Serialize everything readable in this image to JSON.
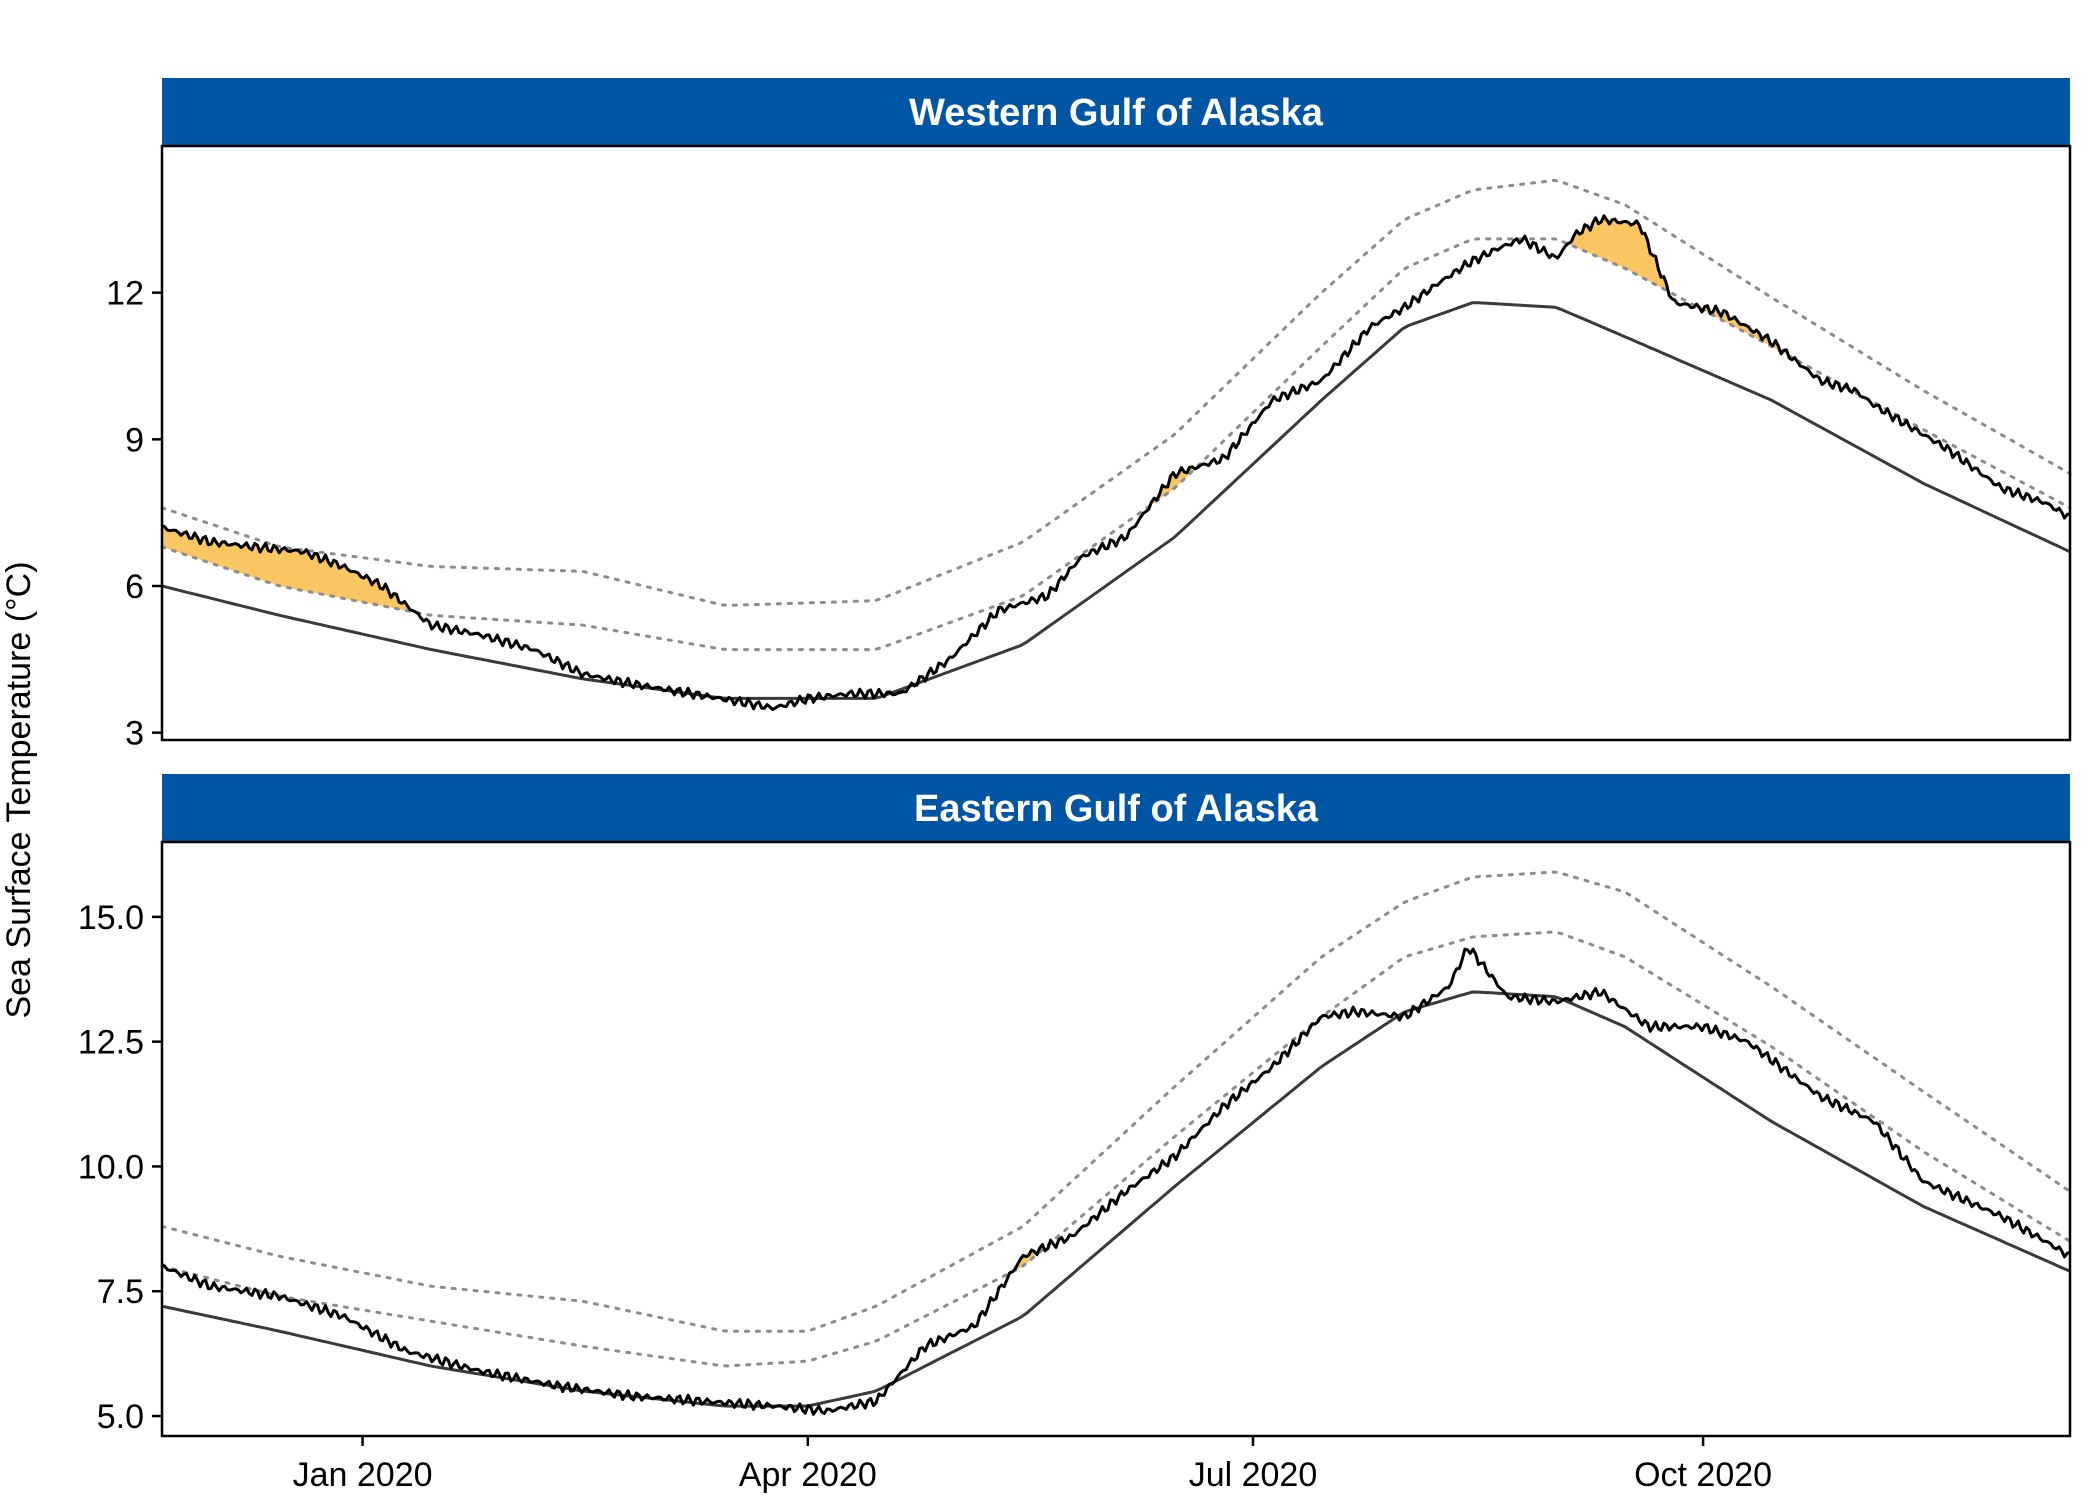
{
  "colors": {
    "strip": "#0055A4",
    "strip_text": "#FFFFFF",
    "observed": "#000000",
    "climatology": "#3a3a3a",
    "threshold": "#8c8c8c",
    "heatwave_fill": "#F9C662"
  },
  "ylabel": "Sea Surface Temperature (°C)",
  "x_ticks": [
    "Jan 2020",
    "Apr 2020",
    "Jul 2020",
    "Oct 2020"
  ],
  "chart_data": [
    {
      "type": "line",
      "title": "Western Gulf of Alaska",
      "xlabel": "",
      "ylabel": "Sea Surface Temperature (°C)",
      "xlim": [
        "2019-11-21",
        "2020-12-15"
      ],
      "ylim": [
        2.85,
        15.0
      ],
      "y_ticks": [
        3,
        6,
        9,
        12
      ],
      "grid": false,
      "series": [
        {
          "role": "observed",
          "x": [
            "2019-11-21",
            "2019-12-01",
            "2019-12-10",
            "2019-12-20",
            "2019-12-28",
            "2020-01-05",
            "2020-01-15",
            "2020-01-25",
            "2020-02-05",
            "2020-02-15",
            "2020-02-25",
            "2020-03-08",
            "2020-03-20",
            "2020-03-25",
            "2020-04-01",
            "2020-04-10",
            "2020-04-20",
            "2020-04-30",
            "2020-05-10",
            "2020-05-20",
            "2020-05-27",
            "2020-06-05",
            "2020-06-15",
            "2020-06-25",
            "2020-07-05",
            "2020-07-15",
            "2020-07-25",
            "2020-08-01",
            "2020-08-08",
            "2020-08-14",
            "2020-08-20",
            "2020-08-25",
            "2020-09-01",
            "2020-09-05",
            "2020-09-10",
            "2020-09-18",
            "2020-09-25",
            "2020-10-05",
            "2020-10-15",
            "2020-10-25",
            "2020-11-01",
            "2020-11-05",
            "2020-11-10",
            "2020-11-20",
            "2020-12-01",
            "2020-12-10",
            "2020-12-15"
          ],
          "y": [
            7.2,
            6.9,
            6.8,
            6.7,
            6.4,
            6.0,
            5.2,
            5.0,
            4.7,
            4.2,
            4.0,
            3.8,
            3.6,
            3.5,
            3.7,
            3.8,
            3.8,
            4.5,
            5.5,
            5.8,
            6.6,
            7.0,
            8.3,
            8.6,
            9.8,
            10.2,
            11.3,
            11.7,
            12.2,
            12.6,
            12.9,
            13.1,
            12.7,
            13.2,
            13.5,
            13.4,
            11.8,
            11.6,
            11.0,
            10.2,
            10.0,
            9.7,
            9.4,
            8.8,
            8.0,
            7.7,
            7.4
          ]
        },
        {
          "role": "climatology",
          "x": [
            "2019-11-21",
            "2019-12-15",
            "2020-01-15",
            "2020-02-15",
            "2020-03-15",
            "2020-04-15",
            "2020-05-15",
            "2020-06-15",
            "2020-07-15",
            "2020-08-01",
            "2020-08-15",
            "2020-09-01",
            "2020-09-15",
            "2020-10-15",
            "2020-11-15",
            "2020-12-15"
          ],
          "y": [
            6.0,
            5.4,
            4.7,
            4.1,
            3.7,
            3.7,
            4.8,
            7.0,
            9.8,
            11.3,
            11.8,
            11.7,
            11.1,
            9.8,
            8.1,
            6.7
          ]
        },
        {
          "role": "threshold",
          "x": [
            "2019-11-21",
            "2019-12-15",
            "2020-01-15",
            "2020-02-15",
            "2020-03-15",
            "2020-04-15",
            "2020-05-15",
            "2020-06-15",
            "2020-07-15",
            "2020-08-01",
            "2020-08-15",
            "2020-09-01",
            "2020-09-15",
            "2020-10-15",
            "2020-11-15",
            "2020-12-15"
          ],
          "y": [
            6.8,
            6.0,
            5.4,
            5.2,
            4.7,
            4.7,
            5.8,
            8.0,
            10.9,
            12.5,
            13.1,
            13.1,
            12.5,
            10.9,
            9.2,
            7.6
          ]
        },
        {
          "role": "threshold-upper",
          "x": [
            "2019-11-21",
            "2019-12-15",
            "2020-01-15",
            "2020-02-15",
            "2020-03-15",
            "2020-04-15",
            "2020-05-15",
            "2020-06-15",
            "2020-07-15",
            "2020-08-01",
            "2020-08-15",
            "2020-09-01",
            "2020-09-15",
            "2020-10-15",
            "2020-11-15",
            "2020-12-15"
          ],
          "y": [
            7.6,
            6.8,
            6.4,
            6.3,
            5.6,
            5.7,
            6.9,
            9.1,
            12.0,
            13.5,
            14.1,
            14.3,
            13.8,
            11.9,
            10.0,
            8.3
          ]
        }
      ]
    },
    {
      "type": "line",
      "title": "Eastern Gulf of Alaska",
      "xlabel": "",
      "ylabel": "Sea Surface Temperature (°C)",
      "xlim": [
        "2019-11-21",
        "2020-12-15"
      ],
      "ylim": [
        4.6,
        16.5
      ],
      "y_ticks": [
        5.0,
        7.5,
        10.0,
        12.5,
        15.0
      ],
      "y_tick_labels": [
        "5.0",
        "7.5",
        "10.0",
        "12.5",
        "15.0"
      ],
      "x_ticks": [
        "Jan 2020",
        "Apr 2020",
        "Jul 2020",
        "Oct 2020"
      ],
      "grid": false,
      "series": [
        {
          "role": "observed",
          "x": [
            "2019-11-21",
            "2019-12-01",
            "2019-12-15",
            "2019-12-28",
            "2020-01-10",
            "2020-01-25",
            "2020-02-10",
            "2020-02-25",
            "2020-03-10",
            "2020-03-25",
            "2020-04-05",
            "2020-04-15",
            "2020-04-25",
            "2020-05-05",
            "2020-05-15",
            "2020-05-25",
            "2020-06-05",
            "2020-06-15",
            "2020-06-25",
            "2020-07-05",
            "2020-07-15",
            "2020-07-22",
            "2020-08-01",
            "2020-08-10",
            "2020-08-14",
            "2020-08-22",
            "2020-09-01",
            "2020-09-10",
            "2020-09-20",
            "2020-10-01",
            "2020-10-10",
            "2020-10-25",
            "2020-11-05",
            "2020-11-15",
            "2020-12-01",
            "2020-12-10",
            "2020-12-15"
          ],
          "y": [
            8.0,
            7.6,
            7.4,
            7.0,
            6.3,
            5.9,
            5.6,
            5.4,
            5.3,
            5.2,
            5.1,
            5.3,
            6.4,
            6.8,
            8.2,
            8.6,
            9.5,
            10.2,
            11.2,
            12.0,
            13.0,
            13.1,
            13.0,
            13.6,
            14.4,
            13.4,
            13.3,
            13.5,
            12.8,
            12.8,
            12.5,
            11.4,
            10.9,
            9.7,
            9.0,
            8.5,
            8.2
          ]
        },
        {
          "role": "climatology",
          "x": [
            "2019-11-21",
            "2019-12-15",
            "2020-01-15",
            "2020-02-15",
            "2020-03-15",
            "2020-04-01",
            "2020-04-15",
            "2020-05-15",
            "2020-06-15",
            "2020-07-15",
            "2020-08-01",
            "2020-08-15",
            "2020-09-01",
            "2020-09-15",
            "2020-10-15",
            "2020-11-15",
            "2020-12-15"
          ],
          "y": [
            7.2,
            6.7,
            6.0,
            5.5,
            5.2,
            5.2,
            5.5,
            7.0,
            9.6,
            12.0,
            13.1,
            13.5,
            13.4,
            12.8,
            10.9,
            9.2,
            7.9
          ]
        },
        {
          "role": "threshold",
          "x": [
            "2019-11-21",
            "2019-12-15",
            "2020-01-15",
            "2020-02-15",
            "2020-03-15",
            "2020-04-01",
            "2020-04-15",
            "2020-05-15",
            "2020-06-15",
            "2020-07-15",
            "2020-08-01",
            "2020-08-15",
            "2020-09-01",
            "2020-09-15",
            "2020-10-15",
            "2020-11-15",
            "2020-12-15"
          ],
          "y": [
            8.0,
            7.4,
            6.9,
            6.4,
            6.0,
            6.1,
            6.5,
            8.0,
            10.6,
            13.0,
            14.2,
            14.6,
            14.7,
            14.2,
            12.4,
            10.3,
            8.5
          ]
        },
        {
          "role": "threshold-upper",
          "x": [
            "2019-11-21",
            "2019-12-15",
            "2020-01-15",
            "2020-02-15",
            "2020-03-15",
            "2020-04-01",
            "2020-04-15",
            "2020-05-15",
            "2020-06-15",
            "2020-07-15",
            "2020-08-01",
            "2020-08-15",
            "2020-09-01",
            "2020-09-15",
            "2020-10-15",
            "2020-11-15",
            "2020-12-15"
          ],
          "y": [
            8.8,
            8.2,
            7.6,
            7.3,
            6.7,
            6.7,
            7.2,
            8.8,
            11.6,
            14.2,
            15.3,
            15.8,
            15.9,
            15.5,
            13.6,
            11.5,
            9.5
          ]
        }
      ]
    }
  ]
}
